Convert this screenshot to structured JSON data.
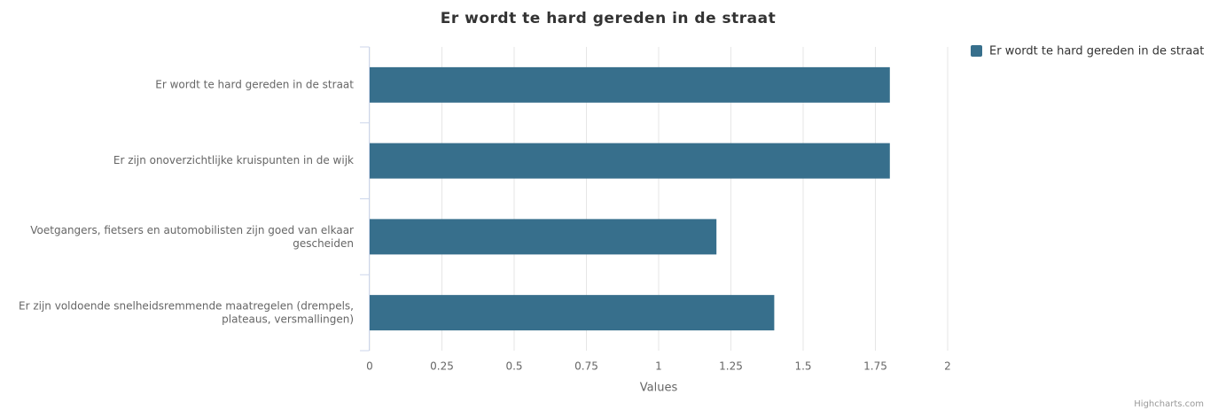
{
  "chart_data": {
    "type": "bar",
    "title": "Er wordt te hard gereden in de straat",
    "categories": [
      "Er wordt te hard gereden in de straat",
      "Er zijn onoverzichtlijke kruispunten in de wijk",
      "Voetgangers, fietsers en automobilisten zijn goed van elkaar gescheiden",
      "Er zijn voldoende snelheidsremmende maatregelen (drempels, plateaus, versmallingen)"
    ],
    "series": [
      {
        "name": "Er wordt te hard gereden in de straat",
        "color": "#376f8c",
        "values": [
          1.8,
          1.8,
          1.2,
          1.4
        ]
      }
    ],
    "xlabel": "Values",
    "xlim": [
      0,
      2
    ],
    "xticks": [
      0,
      0.25,
      0.5,
      0.75,
      1,
      1.25,
      1.5,
      1.75,
      2
    ],
    "grid": true,
    "legend": "top-right",
    "credits": "Highcharts.com"
  }
}
